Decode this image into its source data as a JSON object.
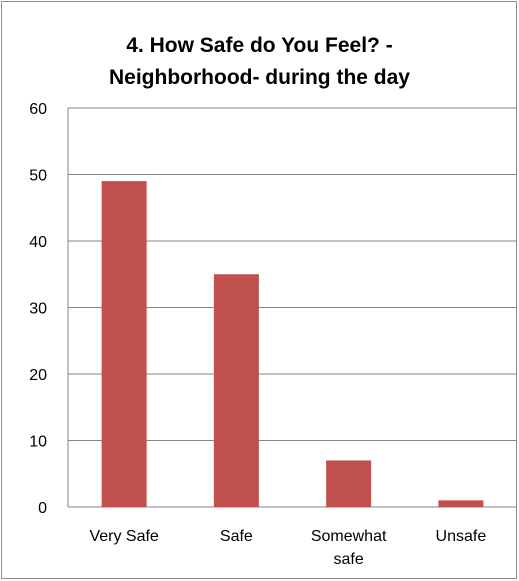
{
  "chart_data": {
    "type": "bar",
    "title_lines": [
      "4. How Safe do You Feel? -",
      "Neighborhood- during the day"
    ],
    "categories": [
      [
        "Very Safe"
      ],
      [
        "Safe"
      ],
      [
        "Somewhat",
        "safe"
      ],
      [
        "Unsafe"
      ]
    ],
    "values": [
      49,
      35,
      7,
      1
    ],
    "ylim": [
      0,
      60
    ],
    "yticks": [
      0,
      10,
      20,
      30,
      40,
      50,
      60
    ],
    "grid": true,
    "legend": "none",
    "bar_color": "#c0504d",
    "grid_color": "#868686"
  }
}
